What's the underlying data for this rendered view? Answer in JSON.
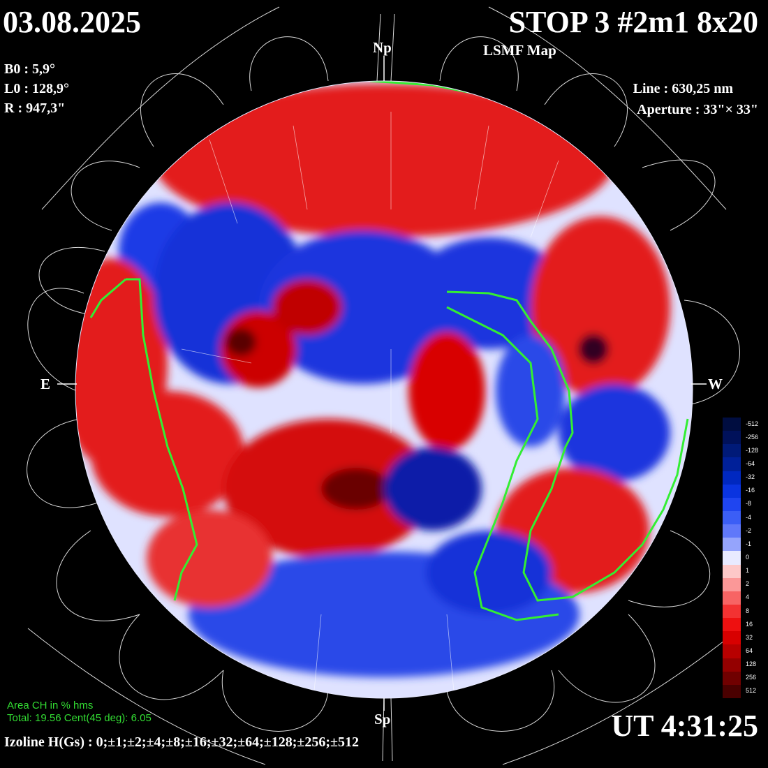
{
  "header": {
    "date": "03.08.2025",
    "title": "STOP 3 #2m1 8x20",
    "subtitle": "LSMF  Map"
  },
  "params": {
    "b0": "B0 : 5,9°",
    "l0": "L0 : 128,9°",
    "r": "R  : 947,3\""
  },
  "instrument": {
    "line": "Line :  630,25 nm",
    "aperture": "Aperture : 33\"× 33\""
  },
  "directions": {
    "north": "Np",
    "south": "Sp",
    "east": "E",
    "west": "W"
  },
  "coronal_hole": {
    "title": "Area CH in % hms",
    "values": "Total: 19.56    Cent(45 deg): 6.05"
  },
  "izoline": "Izoline H(Gs) : 0;±1;±2;±4;±8;±16;±32;±64;±128;±256;±512",
  "time": "UT 4:31:25",
  "scale": {
    "labels": [
      "-512",
      "-256",
      "-128",
      "-64",
      "-32",
      "-16",
      "-8",
      "-4",
      "-2",
      "-1",
      "0",
      "1",
      "2",
      "4",
      "8",
      "16",
      "32",
      "64",
      "128",
      "256",
      "512"
    ],
    "colors": [
      "#000d40",
      "#00115a",
      "#001a78",
      "#002099",
      "#0028c0",
      "#0a34e0",
      "#1f45f0",
      "#3b5ef6",
      "#6078fa",
      "#95a4fc",
      "#e8eaff",
      "#fdc8c8",
      "#fb9898",
      "#f76464",
      "#f33232",
      "#ee1010",
      "#d80000",
      "#b80000",
      "#940000",
      "#700000",
      "#4a0000"
    ]
  }
}
